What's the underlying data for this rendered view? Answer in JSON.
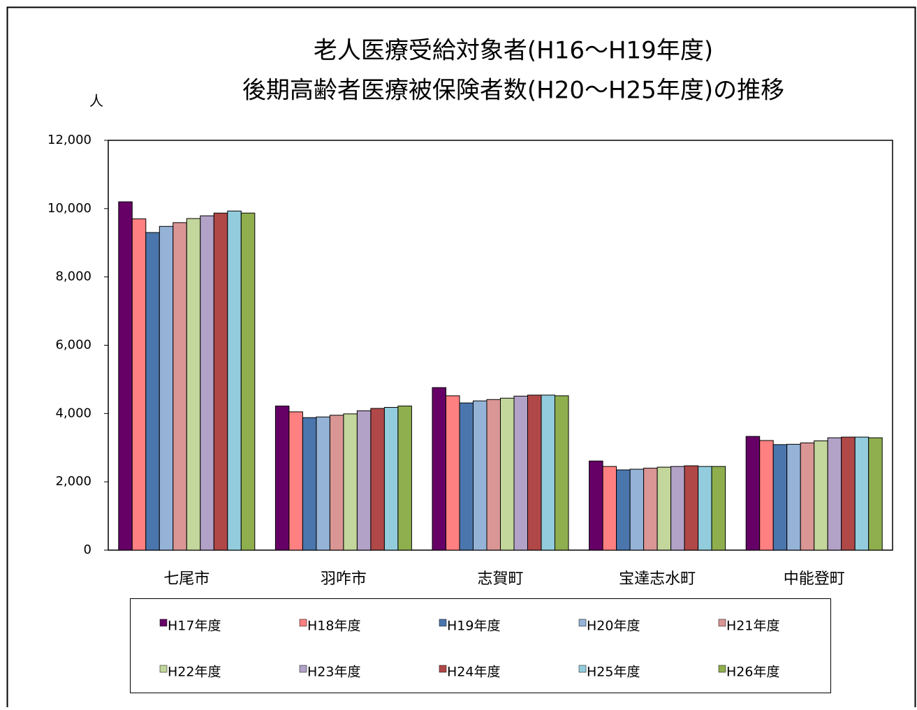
{
  "chart_data": {
    "type": "bar",
    "title_lines": [
      "老人医療受給対象者(H16～H19年度)",
      "後期高齢者医療被保険者数(H20～H25年度)の推移"
    ],
    "y_label": "人",
    "categories": [
      "七尾市",
      "羽咋市",
      "志賀町",
      "宝達志水町",
      "中能登町"
    ],
    "series": [
      {
        "name": "H17年度",
        "color": "#660066",
        "values": [
          10200,
          4220,
          4760,
          2610,
          3330
        ]
      },
      {
        "name": "H18年度",
        "color": "#ff8080",
        "values": [
          9700,
          4050,
          4520,
          2450,
          3210
        ]
      },
      {
        "name": "H19年度",
        "color": "#4a76ad",
        "values": [
          9300,
          3880,
          4310,
          2350,
          3090
        ]
      },
      {
        "name": "H20年度",
        "color": "#95b3d7",
        "values": [
          9480,
          3900,
          4370,
          2370,
          3100
        ]
      },
      {
        "name": "H21年度",
        "color": "#d99694",
        "values": [
          9590,
          3950,
          4410,
          2400,
          3140
        ]
      },
      {
        "name": "H22年度",
        "color": "#c3d69b",
        "values": [
          9710,
          3990,
          4450,
          2430,
          3200
        ]
      },
      {
        "name": "H23年度",
        "color": "#b3a2c7",
        "values": [
          9790,
          4080,
          4510,
          2450,
          3290
        ]
      },
      {
        "name": "H24年度",
        "color": "#b04848",
        "values": [
          9870,
          4150,
          4540,
          2470,
          3310
        ]
      },
      {
        "name": "H25年度",
        "color": "#93cddd",
        "values": [
          9930,
          4180,
          4540,
          2450,
          3310
        ]
      },
      {
        "name": "H26年度",
        "color": "#8faf4f",
        "values": [
          9870,
          4220,
          4520,
          2450,
          3290
        ]
      }
    ],
    "ylim": [
      0,
      12000
    ],
    "yticks": [
      0,
      {
        "value": 2000,
        "label": "2,000"
      },
      {
        "value": 4000,
        "label": "4,000"
      },
      {
        "value": 6000,
        "label": "6,000"
      },
      {
        "value": 8000,
        "label": "8,000"
      },
      {
        "value": 10000,
        "label": "10,000"
      },
      {
        "value": 12000,
        "label": "12,000"
      }
    ],
    "grid": false
  }
}
